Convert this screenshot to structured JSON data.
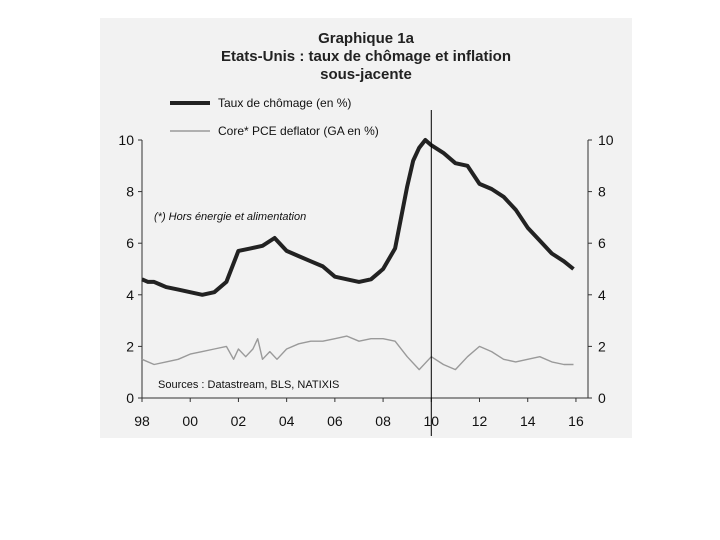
{
  "chart_data": {
    "type": "line",
    "title": "Graphique 1a",
    "subtitle_line1": "Etats-Unis : taux de chômage et inflation",
    "subtitle_line2": "sous-jacente",
    "annotation": "(*) Hors énergie et alimentation",
    "source": "Sources : Datastream, BLS, NATIXIS",
    "xlim": [
      1998,
      2016.5
    ],
    "ylim": [
      0,
      10
    ],
    "y_ticks": [
      0,
      2,
      4,
      6,
      8,
      10
    ],
    "y_tick_labels": [
      "0",
      "2",
      "4",
      "6",
      "8",
      "10"
    ],
    "x_ticks": [
      1998,
      2000,
      2002,
      2004,
      2006,
      2008,
      2010,
      2012,
      2014,
      2016
    ],
    "x_tick_labels": [
      "98",
      "00",
      "02",
      "04",
      "06",
      "08",
      "10",
      "12",
      "14",
      "16"
    ],
    "legend_position": "top-left",
    "grid": false,
    "vertical_marker_x": 2010,
    "series": [
      {
        "name": "Taux de chômage (en %)",
        "color": "#222222",
        "x": [
          1998.0,
          1998.25,
          1998.5,
          1998.75,
          1999.0,
          1999.5,
          2000.0,
          2000.5,
          2001.0,
          2001.5,
          2002.0,
          2002.5,
          2003.0,
          2003.5,
          2004.0,
          2004.5,
          2005.0,
          2005.5,
          2006.0,
          2006.5,
          2007.0,
          2007.5,
          2008.0,
          2008.5,
          2009.0,
          2009.25,
          2009.5,
          2009.75,
          2010.0,
          2010.5,
          2011.0,
          2011.5,
          2012.0,
          2012.5,
          2013.0,
          2013.5,
          2014.0,
          2014.5,
          2015.0,
          2015.5,
          2015.9
        ],
        "values": [
          4.6,
          4.5,
          4.5,
          4.4,
          4.3,
          4.2,
          4.1,
          4.0,
          4.1,
          4.5,
          5.7,
          5.8,
          5.9,
          6.2,
          5.7,
          5.5,
          5.3,
          5.1,
          4.7,
          4.6,
          4.5,
          4.6,
          5.0,
          5.8,
          8.2,
          9.2,
          9.7,
          10.0,
          9.8,
          9.5,
          9.1,
          9.0,
          8.3,
          8.1,
          7.8,
          7.3,
          6.6,
          6.1,
          5.6,
          5.3,
          5.0
        ]
      },
      {
        "name": "Core* PCE deflator (GA en %)",
        "color": "#9a9a9a",
        "x": [
          1998.0,
          1998.5,
          1999.0,
          1999.5,
          2000.0,
          2000.5,
          2001.0,
          2001.5,
          2001.8,
          2002.0,
          2002.3,
          2002.6,
          2002.8,
          2003.0,
          2003.3,
          2003.6,
          2004.0,
          2004.5,
          2005.0,
          2005.5,
          2006.0,
          2006.5,
          2007.0,
          2007.5,
          2008.0,
          2008.5,
          2009.0,
          2009.5,
          2010.0,
          2010.5,
          2011.0,
          2011.5,
          2012.0,
          2012.5,
          2013.0,
          2013.5,
          2014.0,
          2014.5,
          2015.0,
          2015.5,
          2015.9
        ],
        "values": [
          1.5,
          1.3,
          1.4,
          1.5,
          1.7,
          1.8,
          1.9,
          2.0,
          1.5,
          1.9,
          1.6,
          1.9,
          2.3,
          1.5,
          1.8,
          1.5,
          1.9,
          2.1,
          2.2,
          2.2,
          2.3,
          2.4,
          2.2,
          2.3,
          2.3,
          2.2,
          1.6,
          1.1,
          1.6,
          1.3,
          1.1,
          1.6,
          2.0,
          1.8,
          1.5,
          1.4,
          1.5,
          1.6,
          1.4,
          1.3,
          1.3
        ]
      }
    ]
  }
}
